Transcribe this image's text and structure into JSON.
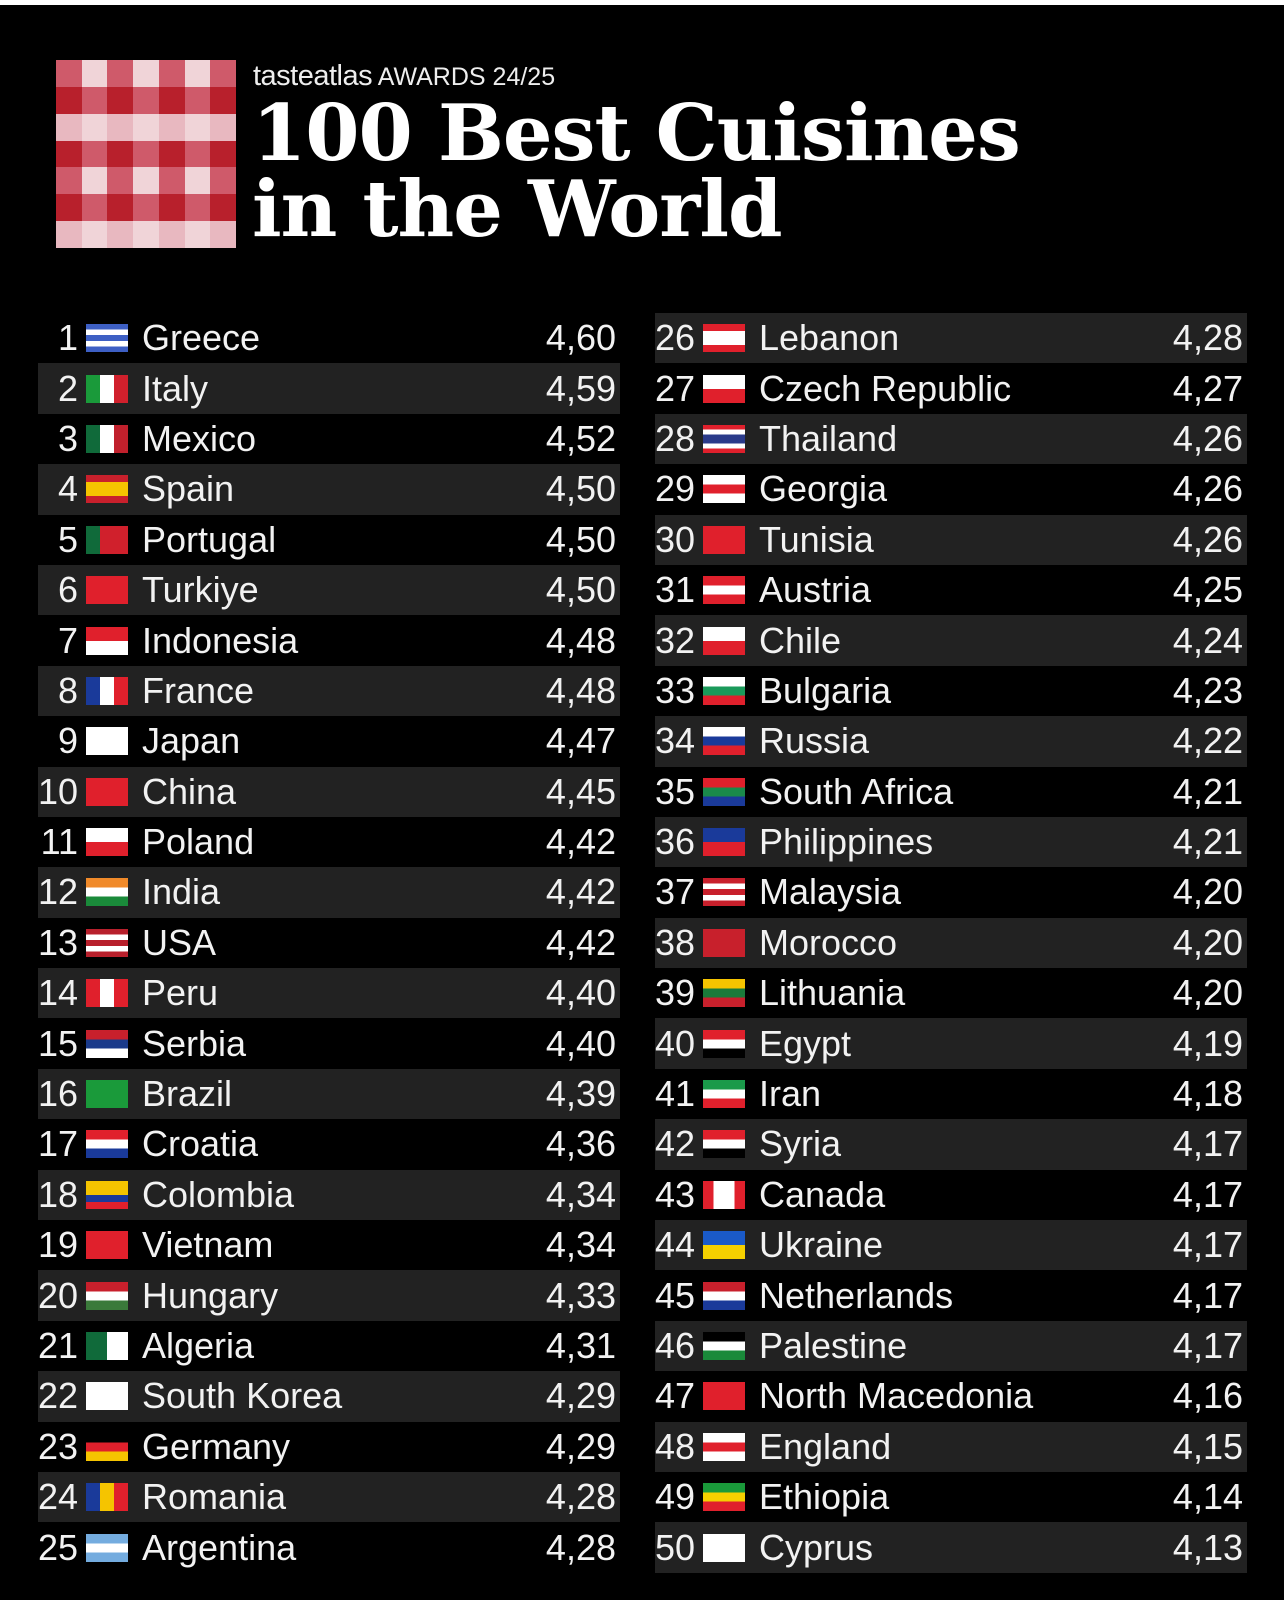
{
  "header": {
    "brand": "tasteatlas",
    "awards": "AWARDS 24/25",
    "title_line1": "100 Best Cuisines",
    "title_line2": "in the World"
  },
  "colors": {
    "checker_dark": "#b8202c",
    "checker_mid": "#cf5a6a",
    "checker_light": "#f0d4d8",
    "row_alt": "#222222"
  },
  "rankings": [
    {
      "rank": "1",
      "country": "Greece",
      "score": "4,60",
      "flag": {
        "d": "h",
        "c": [
          "#3d5fc4",
          "#fff",
          "#3d5fc4",
          "#fff",
          "#3d5fc4"
        ]
      }
    },
    {
      "rank": "2",
      "country": "Italy",
      "score": "4,59",
      "flag": {
        "d": "v",
        "c": [
          "#1a9a3a",
          "#fff",
          "#d0202c"
        ]
      }
    },
    {
      "rank": "3",
      "country": "Mexico",
      "score": "4,52",
      "flag": {
        "d": "v",
        "c": [
          "#106a3a",
          "#fff",
          "#c0202c"
        ]
      }
    },
    {
      "rank": "4",
      "country": "Spain",
      "score": "4,50",
      "flag": {
        "d": "h",
        "c": [
          "#c8202c",
          "#f5c400",
          "#f5c400",
          "#c8202c"
        ]
      }
    },
    {
      "rank": "5",
      "country": "Portugal",
      "score": "4,50",
      "flag": {
        "d": "v",
        "c": [
          "#106a3a",
          "#d0202c",
          "#d0202c"
        ]
      }
    },
    {
      "rank": "6",
      "country": "Turkiye",
      "score": "4,50",
      "flag": {
        "d": "h",
        "c": [
          "#e0202c"
        ]
      }
    },
    {
      "rank": "7",
      "country": "Indonesia",
      "score": "4,48",
      "flag": {
        "d": "h",
        "c": [
          "#e0202c",
          "#fff"
        ]
      }
    },
    {
      "rank": "8",
      "country": "France",
      "score": "4,48",
      "flag": {
        "d": "v",
        "c": [
          "#1a3a9a",
          "#fff",
          "#e0202c"
        ]
      }
    },
    {
      "rank": "9",
      "country": "Japan",
      "score": "4,47",
      "flag": {
        "d": "h",
        "c": [
          "#fff"
        ]
      }
    },
    {
      "rank": "10",
      "country": "China",
      "score": "4,45",
      "flag": {
        "d": "h",
        "c": [
          "#e0202c"
        ]
      }
    },
    {
      "rank": "11",
      "country": "Poland",
      "score": "4,42",
      "flag": {
        "d": "h",
        "c": [
          "#fff",
          "#e0202c"
        ]
      }
    },
    {
      "rank": "12",
      "country": "India",
      "score": "4,42",
      "flag": {
        "d": "h",
        "c": [
          "#f08a2a",
          "#fff",
          "#1a8a3a"
        ]
      }
    },
    {
      "rank": "13",
      "country": "USA",
      "score": "4,42",
      "flag": {
        "d": "h",
        "c": [
          "#b8202c",
          "#fff",
          "#b8202c",
          "#fff",
          "#b8202c"
        ]
      }
    },
    {
      "rank": "14",
      "country": "Peru",
      "score": "4,40",
      "flag": {
        "d": "v",
        "c": [
          "#e0202c",
          "#fff",
          "#e0202c"
        ]
      }
    },
    {
      "rank": "15",
      "country": "Serbia",
      "score": "4,40",
      "flag": {
        "d": "h",
        "c": [
          "#c8202c",
          "#1a3a8a",
          "#fff"
        ]
      }
    },
    {
      "rank": "16",
      "country": "Brazil",
      "score": "4,39",
      "flag": {
        "d": "h",
        "c": [
          "#1a9a3a"
        ]
      }
    },
    {
      "rank": "17",
      "country": "Croatia",
      "score": "4,36",
      "flag": {
        "d": "h",
        "c": [
          "#e0202c",
          "#fff",
          "#1a3a9a"
        ]
      }
    },
    {
      "rank": "18",
      "country": "Colombia",
      "score": "4,34",
      "flag": {
        "d": "h",
        "c": [
          "#f5c400",
          "#f5c400",
          "#1a3a9a",
          "#e0202c"
        ]
      }
    },
    {
      "rank": "19",
      "country": "Vietnam",
      "score": "4,34",
      "flag": {
        "d": "h",
        "c": [
          "#e0202c"
        ]
      }
    },
    {
      "rank": "20",
      "country": "Hungary",
      "score": "4,33",
      "flag": {
        "d": "h",
        "c": [
          "#c8202c",
          "#fff",
          "#3a7a3a"
        ]
      }
    },
    {
      "rank": "21",
      "country": "Algeria",
      "score": "4,31",
      "flag": {
        "d": "v",
        "c": [
          "#106a3a",
          "#fff"
        ]
      }
    },
    {
      "rank": "22",
      "country": "South Korea",
      "score": "4,29",
      "flag": {
        "d": "h",
        "c": [
          "#fff"
        ]
      }
    },
    {
      "rank": "23",
      "country": "Germany",
      "score": "4,29",
      "flag": {
        "d": "h",
        "c": [
          "#000",
          "#e0202c",
          "#f5c400"
        ]
      }
    },
    {
      "rank": "24",
      "country": "Romania",
      "score": "4,28",
      "flag": {
        "d": "v",
        "c": [
          "#1a3a9a",
          "#f5c400",
          "#e0202c"
        ]
      }
    },
    {
      "rank": "25",
      "country": "Argentina",
      "score": "4,28",
      "flag": {
        "d": "h",
        "c": [
          "#74acdf",
          "#fff",
          "#74acdf"
        ]
      }
    },
    {
      "rank": "26",
      "country": "Lebanon",
      "score": "4,28",
      "flag": {
        "d": "h",
        "c": [
          "#e0202c",
          "#fff",
          "#fff",
          "#e0202c"
        ]
      }
    },
    {
      "rank": "27",
      "country": "Czech Republic",
      "score": "4,27",
      "flag": {
        "d": "h",
        "c": [
          "#fff",
          "#e0202c"
        ]
      }
    },
    {
      "rank": "28",
      "country": "Thailand",
      "score": "4,26",
      "flag": {
        "d": "h",
        "c": [
          "#e0202c",
          "#fff",
          "#2a3a8a",
          "#2a3a8a",
          "#fff",
          "#e0202c"
        ]
      }
    },
    {
      "rank": "29",
      "country": "Georgia",
      "score": "4,26",
      "flag": {
        "d": "h",
        "c": [
          "#fff",
          "#e0202c",
          "#fff"
        ]
      }
    },
    {
      "rank": "30",
      "country": "Tunisia",
      "score": "4,26",
      "flag": {
        "d": "h",
        "c": [
          "#e0202c"
        ]
      }
    },
    {
      "rank": "31",
      "country": "Austria",
      "score": "4,25",
      "flag": {
        "d": "h",
        "c": [
          "#e0202c",
          "#fff",
          "#e0202c"
        ]
      }
    },
    {
      "rank": "32",
      "country": "Chile",
      "score": "4,24",
      "flag": {
        "d": "h",
        "c": [
          "#fff",
          "#e0202c"
        ]
      }
    },
    {
      "rank": "33",
      "country": "Bulgaria",
      "score": "4,23",
      "flag": {
        "d": "h",
        "c": [
          "#fff",
          "#1a9a5a",
          "#e0202c"
        ]
      }
    },
    {
      "rank": "34",
      "country": "Russia",
      "score": "4,22",
      "flag": {
        "d": "h",
        "c": [
          "#fff",
          "#1a3a9a",
          "#e0202c"
        ]
      }
    },
    {
      "rank": "35",
      "country": "South Africa",
      "score": "4,21",
      "flag": {
        "d": "h",
        "c": [
          "#e0202c",
          "#1a8a4a",
          "#1a3a9a"
        ]
      }
    },
    {
      "rank": "36",
      "country": "Philippines",
      "score": "4,21",
      "flag": {
        "d": "h",
        "c": [
          "#1a3a9a",
          "#e0202c"
        ]
      }
    },
    {
      "rank": "37",
      "country": "Malaysia",
      "score": "4,20",
      "flag": {
        "d": "h",
        "c": [
          "#c8202c",
          "#fff",
          "#c8202c",
          "#fff",
          "#c8202c"
        ]
      }
    },
    {
      "rank": "38",
      "country": "Morocco",
      "score": "4,20",
      "flag": {
        "d": "h",
        "c": [
          "#c8202c"
        ]
      }
    },
    {
      "rank": "39",
      "country": "Lithuania",
      "score": "4,20",
      "flag": {
        "d": "h",
        "c": [
          "#f5c400",
          "#1a7a3a",
          "#c8202c"
        ]
      }
    },
    {
      "rank": "40",
      "country": "Egypt",
      "score": "4,19",
      "flag": {
        "d": "h",
        "c": [
          "#e0202c",
          "#fff",
          "#000"
        ]
      }
    },
    {
      "rank": "41",
      "country": "Iran",
      "score": "4,18",
      "flag": {
        "d": "h",
        "c": [
          "#1a9a4a",
          "#fff",
          "#e0202c"
        ]
      }
    },
    {
      "rank": "42",
      "country": "Syria",
      "score": "4,17",
      "flag": {
        "d": "h",
        "c": [
          "#e0202c",
          "#fff",
          "#000"
        ]
      }
    },
    {
      "rank": "43",
      "country": "Canada",
      "score": "4,17",
      "flag": {
        "d": "v",
        "c": [
          "#e0202c",
          "#fff",
          "#fff",
          "#e0202c"
        ]
      }
    },
    {
      "rank": "44",
      "country": "Ukraine",
      "score": "4,17",
      "flag": {
        "d": "h",
        "c": [
          "#1a5ac8",
          "#f5d000"
        ]
      }
    },
    {
      "rank": "45",
      "country": "Netherlands",
      "score": "4,17",
      "flag": {
        "d": "h",
        "c": [
          "#c8202c",
          "#fff",
          "#1a3a9a"
        ]
      }
    },
    {
      "rank": "46",
      "country": "Palestine",
      "score": "4,17",
      "flag": {
        "d": "h",
        "c": [
          "#000",
          "#fff",
          "#1a8a3a"
        ]
      }
    },
    {
      "rank": "47",
      "country": "North Macedonia",
      "score": "4,16",
      "flag": {
        "d": "h",
        "c": [
          "#e0202c"
        ]
      }
    },
    {
      "rank": "48",
      "country": "England",
      "score": "4,15",
      "flag": {
        "d": "h",
        "c": [
          "#fff",
          "#e0202c",
          "#fff"
        ]
      }
    },
    {
      "rank": "49",
      "country": "Ethiopia",
      "score": "4,14",
      "flag": {
        "d": "h",
        "c": [
          "#1a9a3a",
          "#f5d000",
          "#e0202c"
        ]
      }
    },
    {
      "rank": "50",
      "country": "Cyprus",
      "score": "4,13",
      "flag": {
        "d": "h",
        "c": [
          "#fff"
        ]
      }
    }
  ]
}
